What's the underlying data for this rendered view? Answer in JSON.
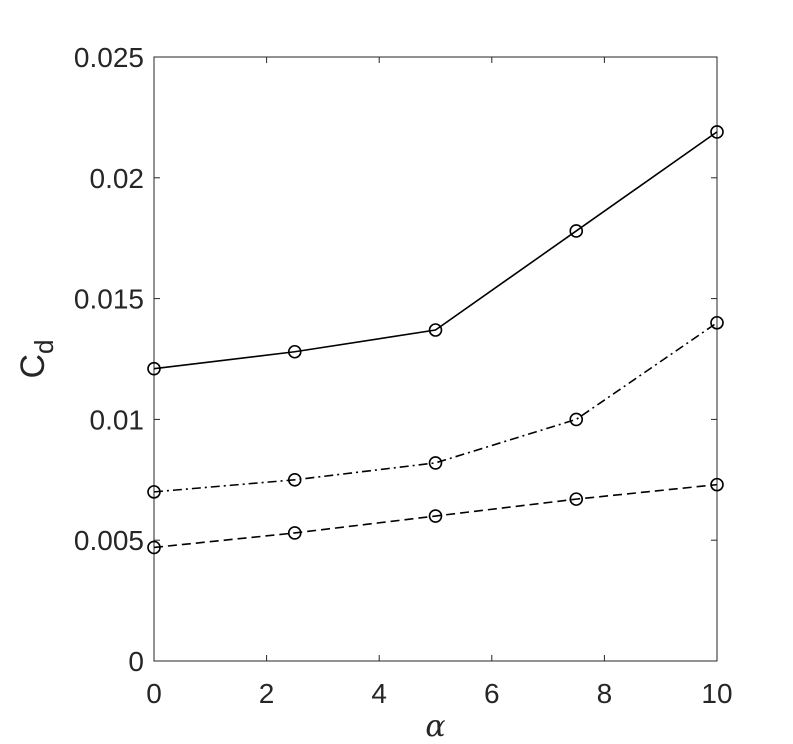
{
  "chart_data": {
    "type": "line",
    "title": "",
    "xlabel": "α",
    "ylabel": {
      "main": "C",
      "subscript": "d"
    },
    "x": [
      0,
      2.5,
      5,
      7.5,
      10
    ],
    "xlim": [
      0,
      10
    ],
    "ylim": [
      0,
      0.025
    ],
    "x_ticks": [
      0,
      2,
      4,
      6,
      8,
      10
    ],
    "x_tick_labels": [
      "0",
      "2",
      "4",
      "6",
      "8",
      "10"
    ],
    "y_ticks": [
      0,
      0.005,
      0.01,
      0.015,
      0.02,
      0.025
    ],
    "y_tick_labels": [
      "0",
      "0.005",
      "0.01",
      "0.015",
      "0.02",
      "0.025"
    ],
    "grid": false,
    "legend": "none",
    "series": [
      {
        "line_style": "solid",
        "marker": "circle",
        "color": "#000000",
        "values": [
          0.0121,
          0.0128,
          0.0137,
          0.0178,
          0.0219
        ]
      },
      {
        "line_style": "dash-dot",
        "marker": "circle",
        "color": "#000000",
        "values": [
          0.007,
          0.0075,
          0.0082,
          0.01,
          0.014
        ]
      },
      {
        "line_style": "dashed",
        "marker": "circle",
        "color": "#000000",
        "values": [
          0.0047,
          0.0053,
          0.006,
          0.0067,
          0.0073
        ]
      }
    ],
    "axis_color": "#262626"
  }
}
